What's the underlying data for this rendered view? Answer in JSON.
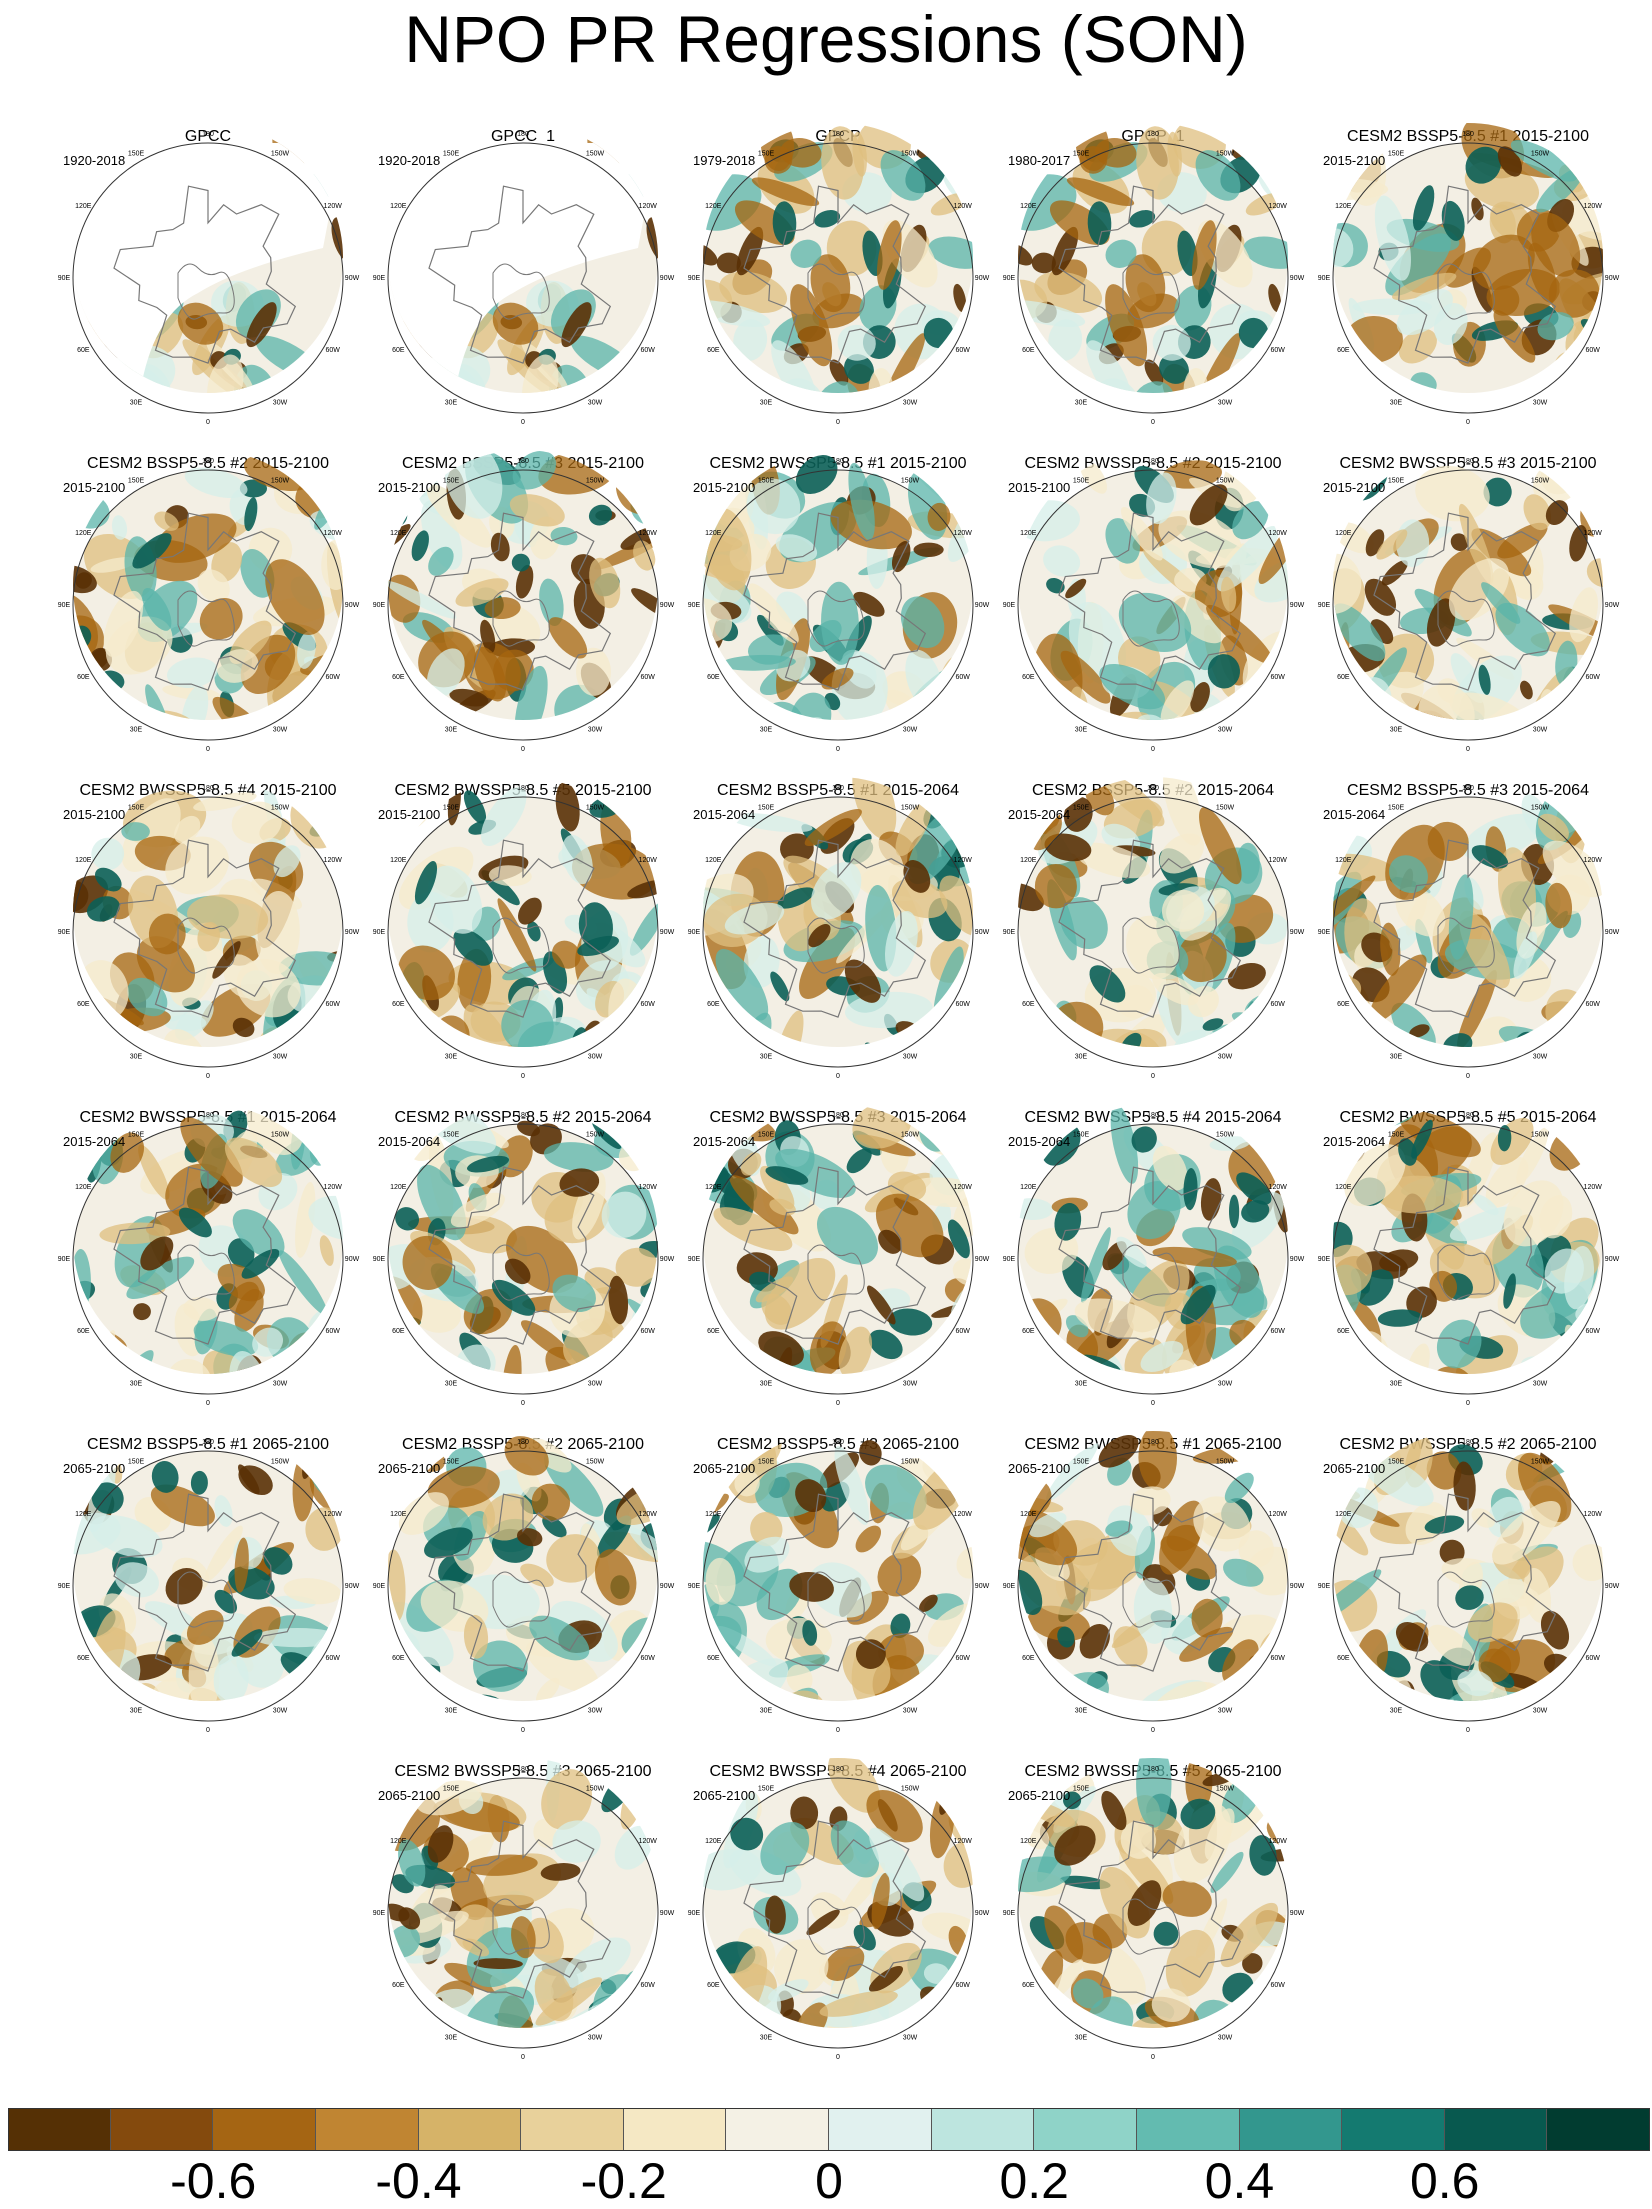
{
  "title": "NPO PR Regressions (SON)",
  "lon_labels": [
    "180",
    "150E",
    "120E",
    "90E",
    "60E",
    "30E",
    "0",
    "30W",
    "60W",
    "90W",
    "120W",
    "150W"
  ],
  "colors": {
    "brown_dark": "#5a3105",
    "brown": "#a5660f",
    "tan": "#dfbf7f",
    "cream": "#f6ebcc",
    "neutral": "#f3efe4",
    "mint": "#d5efe9",
    "teal": "#5ab4aa",
    "teal_dark": "#0b5f57",
    "coast": "#777777"
  },
  "panels": [
    {
      "title": "GPCC",
      "period": "1920-2018",
      "masked": true,
      "pattern": 1
    },
    {
      "title": "GPCC_1",
      "period": "1920-2018",
      "masked": true,
      "pattern": 1
    },
    {
      "title": "GPCP",
      "period": "1979-2018",
      "masked": false,
      "pattern": 2
    },
    {
      "title": "GPCP_1",
      "period": "1980-2017",
      "masked": false,
      "pattern": 2
    },
    {
      "title": "CESM2 BSSP5-8.5 #1 2015-2100",
      "period": "2015-2100",
      "masked": false,
      "pattern": 3
    },
    {
      "title": "CESM2 BSSP5-8.5 #2 2015-2100",
      "period": "2015-2100",
      "masked": false,
      "pattern": 4
    },
    {
      "title": "CESM2 BSSP5-8.5 #3 2015-2100",
      "period": "2015-2100",
      "masked": false,
      "pattern": 5
    },
    {
      "title": "CESM2 BWSSP5-8.5 #1 2015-2100",
      "period": "2015-2100",
      "masked": false,
      "pattern": 6
    },
    {
      "title": "CESM2 BWSSP5-8.5 #2 2015-2100",
      "period": "2015-2100",
      "masked": false,
      "pattern": 7
    },
    {
      "title": "CESM2 BWSSP5-8.5 #3 2015-2100",
      "period": "2015-2100",
      "masked": false,
      "pattern": 8
    },
    {
      "title": "CESM2 BWSSP5-8.5 #4 2015-2100",
      "period": "2015-2100",
      "masked": false,
      "pattern": 9
    },
    {
      "title": "CESM2 BWSSP5-8.5 #5 2015-2100",
      "period": "2015-2100",
      "masked": false,
      "pattern": 10
    },
    {
      "title": "CESM2 BSSP5-8.5 #1 2015-2064",
      "period": "2015-2064",
      "masked": false,
      "pattern": 11
    },
    {
      "title": "CESM2 BSSP5-8.5 #2 2015-2064",
      "period": "2015-2064",
      "masked": false,
      "pattern": 12
    },
    {
      "title": "CESM2 BSSP5-8.5 #3 2015-2064",
      "period": "2015-2064",
      "masked": false,
      "pattern": 13
    },
    {
      "title": "CESM2 BWSSP5-8.5 #1 2015-2064",
      "period": "2015-2064",
      "masked": false,
      "pattern": 14
    },
    {
      "title": "CESM2 BWSSP5-8.5 #2 2015-2064",
      "period": "2015-2064",
      "masked": false,
      "pattern": 15
    },
    {
      "title": "CESM2 BWSSP5-8.5 #3 2015-2064",
      "period": "2015-2064",
      "masked": false,
      "pattern": 16
    },
    {
      "title": "CESM2 BWSSP5-8.5 #4 2015-2064",
      "period": "2015-2064",
      "masked": false,
      "pattern": 17
    },
    {
      "title": "CESM2 BWSSP5-8.5 #5 2015-2064",
      "period": "2015-2064",
      "masked": false,
      "pattern": 18
    },
    {
      "title": "CESM2 BSSP5-8.5 #1 2065-2100",
      "period": "2065-2100",
      "masked": false,
      "pattern": 19
    },
    {
      "title": "CESM2 BSSP5-8.5 #2 2065-2100",
      "period": "2065-2100",
      "masked": false,
      "pattern": 20
    },
    {
      "title": "CESM2 BSSP5-8.5 #3 2065-2100",
      "period": "2065-2100",
      "masked": false,
      "pattern": 21
    },
    {
      "title": "CESM2 BWSSP5-8.5 #1 2065-2100",
      "period": "2065-2100",
      "masked": false,
      "pattern": 22
    },
    {
      "title": "CESM2 BWSSP5-8.5 #2 2065-2100",
      "period": "2065-2100",
      "masked": false,
      "pattern": 23
    },
    {
      "title": "CESM2 BWSSP5-8.5 #3 2065-2100",
      "period": "2065-2100",
      "masked": false,
      "pattern": 24
    },
    {
      "title": "CESM2 BWSSP5-8.5 #4 2065-2100",
      "period": "2065-2100",
      "masked": false,
      "pattern": 25
    },
    {
      "title": "CESM2 BWSSP5-8.5 #5 2065-2100",
      "period": "2065-2100",
      "masked": false,
      "pattern": 26
    }
  ],
  "colorbar": {
    "colors": [
      "#553005",
      "#844a0d",
      "#a56513",
      "#c08532",
      "#d6b368",
      "#e8d19b",
      "#f5e8c4",
      "#f4f1e5",
      "#e1f1ef",
      "#bde5df",
      "#8fd3c8",
      "#63bbb0",
      "#33978e",
      "#147a70",
      "#08594f",
      "#013c30"
    ],
    "boundaries": [
      -0.8,
      -0.7,
      -0.6,
      -0.5,
      -0.4,
      -0.3,
      -0.2,
      -0.1,
      0,
      0.1,
      0.2,
      0.3,
      0.4,
      0.5,
      0.6,
      0.7,
      0.8
    ],
    "tick_labels": [
      "-0.6",
      "-0.4",
      "-0.2",
      "0",
      "0.2",
      "0.4",
      "0.6"
    ],
    "tick_values": [
      -0.6,
      -0.4,
      -0.2,
      0,
      0.2,
      0.4,
      0.6
    ]
  }
}
